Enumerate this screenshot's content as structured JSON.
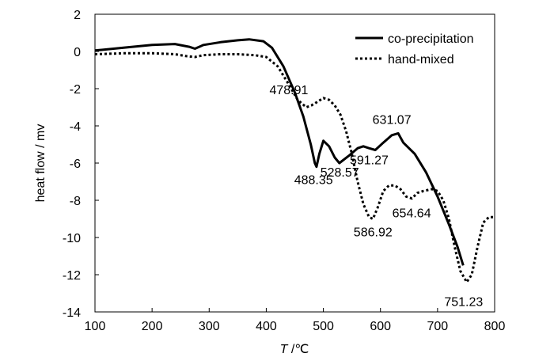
{
  "chart_data": {
    "type": "line",
    "title": "",
    "xlabel_italic": "T",
    "xlabel_rest": " /℃",
    "ylabel": "heat flow / mv",
    "xlim": [
      100,
      800
    ],
    "ylim": [
      -14,
      2
    ],
    "x_ticks": [
      100,
      200,
      300,
      400,
      500,
      600,
      700,
      800
    ],
    "y_ticks": [
      2,
      0,
      -2,
      -4,
      -6,
      -8,
      -10,
      -12,
      -14
    ],
    "grid": false,
    "legend_position": "top-right",
    "series": [
      {
        "name": "co-precipitation",
        "style": "solid",
        "color": "#000000",
        "x": [
          100,
          150,
          200,
          240,
          265,
          275,
          290,
          320,
          350,
          370,
          395,
          410,
          430,
          450,
          465,
          478,
          485,
          488,
          493,
          500,
          510,
          520,
          528,
          545,
          560,
          570,
          580,
          591,
          605,
          620,
          631,
          640,
          660,
          680,
          700,
          720,
          735,
          745
        ],
        "y": [
          0.05,
          0.2,
          0.35,
          0.4,
          0.25,
          0.15,
          0.35,
          0.5,
          0.6,
          0.65,
          0.55,
          0.2,
          -0.8,
          -2.2,
          -3.5,
          -5.0,
          -6.0,
          -6.2,
          -5.5,
          -4.8,
          -5.1,
          -5.7,
          -6.0,
          -5.6,
          -5.2,
          -5.1,
          -5.2,
          -5.3,
          -4.9,
          -4.5,
          -4.4,
          -4.9,
          -5.5,
          -6.5,
          -7.8,
          -9.3,
          -10.5,
          -11.5
        ]
      },
      {
        "name": "hand-mixed",
        "style": "dotted",
        "color": "#000000",
        "x": [
          100,
          150,
          200,
          240,
          260,
          275,
          290,
          320,
          350,
          380,
          400,
          420,
          440,
          455,
          470,
          479,
          490,
          500,
          510,
          520,
          530,
          540,
          550,
          560,
          570,
          580,
          587,
          595,
          605,
          615,
          625,
          635,
          645,
          655,
          665,
          675,
          690,
          700,
          710,
          720,
          730,
          740,
          751,
          760,
          770,
          780,
          790,
          800
        ],
        "y": [
          -0.15,
          -0.1,
          -0.1,
          -0.15,
          -0.25,
          -0.3,
          -0.2,
          -0.15,
          -0.15,
          -0.2,
          -0.3,
          -0.8,
          -1.8,
          -2.6,
          -3.0,
          -2.9,
          -2.7,
          -2.5,
          -2.6,
          -2.9,
          -3.4,
          -4.3,
          -5.5,
          -7.0,
          -8.2,
          -8.9,
          -9.0,
          -8.4,
          -7.5,
          -7.2,
          -7.2,
          -7.4,
          -7.8,
          -7.9,
          -7.6,
          -7.5,
          -7.4,
          -7.5,
          -8.0,
          -9.0,
          -10.5,
          -11.8,
          -12.4,
          -12.0,
          -10.5,
          -9.2,
          -8.9,
          -8.9
        ]
      }
    ],
    "annotations": [
      {
        "text": "478.91",
        "x": 479,
        "y": -2.9
      },
      {
        "text": "488.35",
        "x": 488.35,
        "y": -6.2
      },
      {
        "text": "528.57",
        "x": 528.57,
        "y": -6.0
      },
      {
        "text": "591.27",
        "x": 591.27,
        "y": -5.3
      },
      {
        "text": "631.07",
        "x": 631.07,
        "y": -4.4
      },
      {
        "text": "586.92",
        "x": 586.92,
        "y": -9.0
      },
      {
        "text": "654.64",
        "x": 654.64,
        "y": -7.9
      },
      {
        "text": "751.23",
        "x": 751.23,
        "y": -12.4
      }
    ]
  }
}
